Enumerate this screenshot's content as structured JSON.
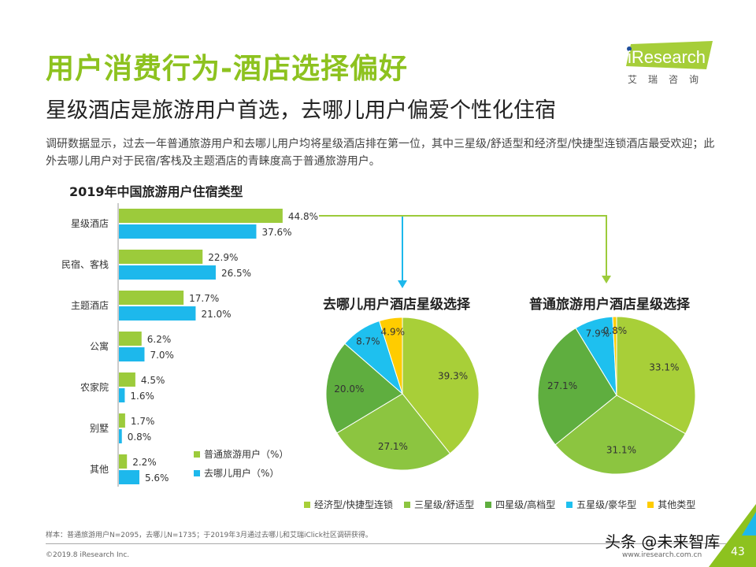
{
  "header": {
    "title": "用户消费行为-酒店选择偏好",
    "subtitle": "星级酒店是旅游用户首选，去哪儿用户偏爱个性化住宿",
    "description": "调研数据显示，过去一年普通旅游用户和去哪儿用户均将星级酒店排在第一位，其中三星级/舒适型和经济型/快捷型连锁酒店最受欢迎；此外去哪儿用户对于民宿/客栈及主题酒店的青睐度高于普通旅游用户。"
  },
  "logo": {
    "text": "iResearch",
    "subtext": "艾瑞咨询",
    "color": "#a6ce39"
  },
  "footer": {
    "note": "样本：普通旅游用户N=2095，去哪儿N=1735；于2019年3月通过去哪儿和艾瑞iClick社区调研获得。",
    "copyright": "©2019.8 iResearch Inc.",
    "site": "www.iresearch.com.cn",
    "page": "43",
    "watermark": "头条 @未来智库"
  },
  "chart_data": [
    {
      "type": "bar",
      "orientation": "horizontal",
      "title": "2019年中国旅游用户住宿类型",
      "categories": [
        "星级酒店",
        "民宿、客栈",
        "主题酒店",
        "公寓",
        "农家院",
        "别墅",
        "其他"
      ],
      "series": [
        {
          "name": "普通旅游用户（%）",
          "color": "#9ccb3b",
          "values": [
            44.8,
            22.9,
            17.7,
            6.2,
            4.5,
            1.7,
            2.2
          ]
        },
        {
          "name": "去哪儿用户（%）",
          "color": "#1db8ec",
          "values": [
            37.6,
            26.5,
            21.0,
            7.0,
            1.6,
            0.8,
            5.6
          ]
        }
      ],
      "legend": "bottom-right"
    },
    {
      "type": "pie",
      "title": "去哪儿用户酒店星级选择",
      "categories": [
        "经济型/快捷型连锁",
        "三星级/舒适型",
        "四星级/高档型",
        "五星级/豪华型",
        "其他类型"
      ],
      "values": [
        39.3,
        27.1,
        20.0,
        8.7,
        4.9
      ]
    },
    {
      "type": "pie",
      "title": "普通旅游用户酒店星级选择",
      "categories": [
        "经济型/快捷型连锁",
        "三星级/舒适型",
        "四星级/高档型",
        "五星级/豪华型",
        "其他类型"
      ],
      "values": [
        33.1,
        31.1,
        27.1,
        7.9,
        0.8
      ]
    }
  ],
  "pie_colors": [
    "#a8cf38",
    "#8cc540",
    "#5fae3f",
    "#1ec0ef",
    "#ffcc00"
  ],
  "pie_legend": [
    "经济型/快捷型连锁",
    "三星级/舒适型",
    "四星级/高档型",
    "五星级/豪华型",
    "其他类型"
  ]
}
